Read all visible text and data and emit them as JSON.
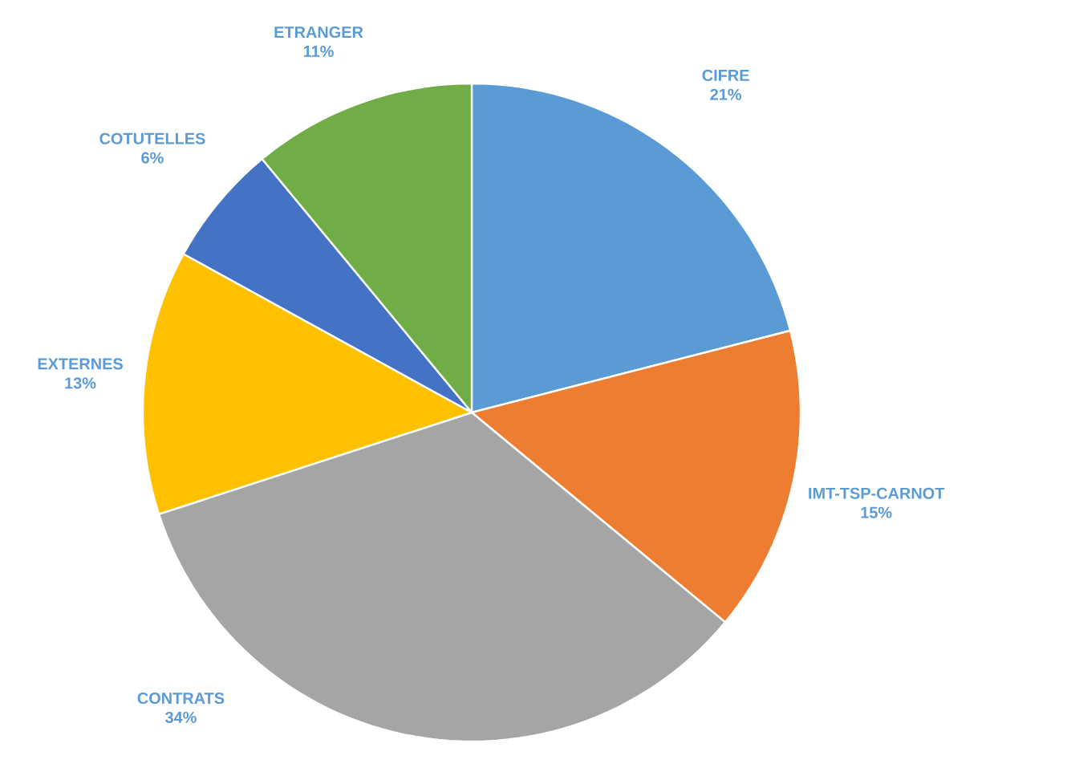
{
  "chart_data": {
    "type": "pie",
    "categories": [
      "CIFRE",
      "IMT-TSP-CARNOT",
      "CONTRATS",
      "EXTERNES",
      "COTUTELLES",
      "ETRANGER"
    ],
    "values": [
      21,
      15,
      34,
      13,
      6,
      11
    ],
    "colors": [
      "#5b9bd5",
      "#ed7d31",
      "#a5a5a5",
      "#ffc000",
      "#4472c4",
      "#70ad47"
    ],
    "value_labels": [
      "21%",
      "15%",
      "34%",
      "13%",
      "6%",
      "11%"
    ]
  }
}
